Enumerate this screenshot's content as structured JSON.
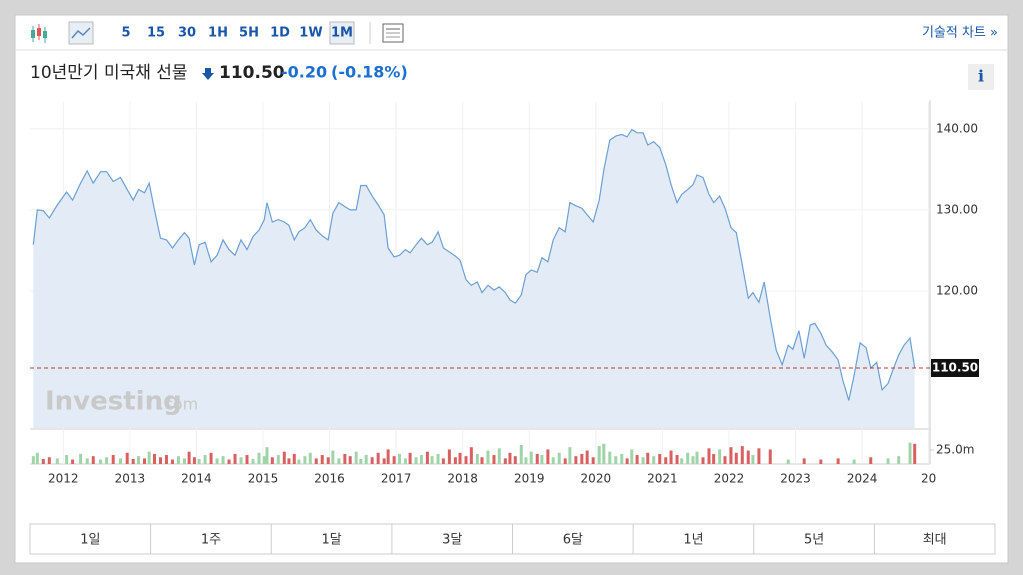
{
  "toolbar": {
    "intervals": [
      "5",
      "15",
      "30",
      "1H",
      "5H",
      "1D",
      "1W",
      "1M"
    ],
    "link": "기술적 차트 »"
  },
  "header": {
    "title": "10년만기 미국채 선물",
    "price": "110.50",
    "change": "-0.20",
    "change_pct": "(-0.18%)",
    "info": "i"
  },
  "watermark": {
    "brand": "Investing",
    "suffix": ".com"
  },
  "ranges": [
    "1일",
    "1주",
    "1달",
    "3달",
    "6달",
    "1년",
    "5년",
    "최대"
  ],
  "chart_data": {
    "type": "area",
    "color": "#6b9fd4",
    "fill": "#e3ecf6",
    "x": [
      2011.55,
      2011.61,
      2011.7,
      2011.79,
      2011.91,
      2012.05,
      2012.14,
      2012.26,
      2012.36,
      2012.45,
      2012.56,
      2012.65,
      2012.75,
      2012.86,
      2012.96,
      2013.05,
      2013.13,
      2013.22,
      2013.29,
      2013.37,
      2013.46,
      2013.55,
      2013.64,
      2013.73,
      2013.82,
      2013.89,
      2013.97,
      2014.04,
      2014.13,
      2014.22,
      2014.31,
      2014.4,
      2014.49,
      2014.58,
      2014.67,
      2014.76,
      2014.85,
      2014.94,
      2015.02,
      2015.06,
      2015.14,
      2015.23,
      2015.32,
      2015.39,
      2015.47,
      2015.54,
      2015.63,
      2015.71,
      2015.8,
      2015.89,
      2015.98,
      2016.05,
      2016.14,
      2016.23,
      2016.31,
      2016.4,
      2016.47,
      2016.55,
      2016.64,
      2016.73,
      2016.82,
      2016.88,
      2016.97,
      2017.05,
      2017.14,
      2017.21,
      2017.3,
      2017.38,
      2017.47,
      2017.54,
      2017.63,
      2017.71,
      2017.8,
      2017.89,
      2017.96,
      2018.05,
      2018.13,
      2018.22,
      2018.29,
      2018.38,
      2018.47,
      2018.55,
      2018.64,
      2018.71,
      2018.79,
      2018.88,
      2018.95,
      2019.03,
      2019.12,
      2019.19,
      2019.28,
      2019.36,
      2019.45,
      2019.54,
      2019.61,
      2019.7,
      2019.79,
      2019.87,
      2019.96,
      2020.05,
      2020.12,
      2020.21,
      2020.3,
      2020.39,
      2020.47,
      2020.54,
      2020.62,
      2020.71,
      2020.78,
      2020.87,
      2020.96,
      2021.05,
      2021.13,
      2021.22,
      2021.29,
      2021.38,
      2021.46,
      2021.52,
      2021.61,
      2021.7,
      2021.77,
      2021.86,
      2021.94,
      2022.03,
      2022.11,
      2022.2,
      2022.29,
      2022.36,
      2022.45,
      2022.53,
      2022.62,
      2022.71,
      2022.8,
      2022.89,
      2022.96,
      2023.05,
      2023.13,
      2023.22,
      2023.29,
      2023.38,
      2023.46,
      2023.55,
      2023.64,
      2023.71,
      2023.8,
      2023.88,
      2023.97,
      2024.06,
      2024.13,
      2024.22,
      2024.3,
      2024.39,
      2024.46,
      2024.55,
      2024.63,
      2024.72,
      2024.79
    ],
    "values": [
      125.7,
      130.0,
      129.9,
      129.0,
      130.6,
      132.2,
      131.2,
      133.3,
      134.8,
      133.3,
      134.7,
      134.7,
      133.5,
      134.0,
      132.5,
      131.2,
      132.5,
      132.1,
      133.3,
      130.0,
      126.5,
      126.3,
      125.3,
      126.3,
      127.2,
      126.5,
      123.2,
      125.7,
      126.0,
      123.6,
      124.4,
      126.3,
      125.1,
      124.4,
      126.3,
      125.1,
      126.7,
      127.5,
      128.8,
      130.9,
      128.5,
      128.8,
      128.5,
      128.1,
      126.3,
      127.3,
      127.8,
      128.8,
      127.5,
      126.8,
      126.3,
      129.6,
      130.9,
      130.4,
      130.0,
      130.0,
      133.0,
      133.0,
      131.7,
      130.6,
      129.4,
      125.3,
      124.2,
      124.4,
      125.1,
      124.7,
      125.7,
      126.5,
      125.7,
      126.0,
      127.3,
      125.3,
      124.8,
      124.3,
      123.8,
      121.4,
      120.7,
      121.1,
      119.8,
      120.7,
      120.1,
      120.5,
      119.8,
      118.9,
      118.5,
      119.5,
      122.0,
      122.6,
      122.3,
      124.1,
      123.6,
      126.3,
      127.8,
      127.3,
      130.9,
      130.5,
      130.2,
      129.4,
      128.5,
      131.2,
      134.9,
      138.6,
      139.1,
      139.3,
      139.0,
      139.9,
      139.5,
      139.5,
      138.0,
      138.4,
      137.7,
      135.6,
      133.1,
      130.9,
      131.9,
      132.5,
      133.1,
      134.3,
      134.0,
      131.9,
      130.9,
      131.7,
      130.2,
      127.8,
      127.2,
      123.2,
      119.1,
      119.8,
      118.6,
      121.1,
      116.7,
      112.7,
      110.9,
      113.3,
      112.8,
      115.1,
      111.7,
      115.8,
      116.0,
      114.8,
      113.3,
      112.5,
      111.5,
      109.0,
      106.5,
      109.6,
      113.6,
      113.0,
      110.5,
      111.2,
      107.8,
      108.6,
      110.2,
      112.1,
      113.3,
      114.2,
      110.5
    ],
    "xlim": [
      2011.5,
      2025.02
    ],
    "xticks": [
      2012,
      2013,
      2014,
      2015,
      2016,
      2017,
      2018,
      2019,
      2020,
      2021,
      2022,
      2023,
      2024,
      {
        "value": 2025,
        "label": "20"
      }
    ],
    "ylim": [
      103.1,
      143.3
    ],
    "yticks": [
      {
        "value": 140,
        "label": "140.00"
      },
      {
        "value": 130,
        "label": "130.00"
      },
      {
        "value": 120,
        "label": "120.00"
      }
    ],
    "grid": true,
    "current_price": {
      "value": 110.5,
      "label": "110.50",
      "color": "#c0392b"
    },
    "volume": {
      "up_color": "#9fd4a8",
      "down_color": "#d9605f",
      "ylim": [
        0,
        60.7
      ],
      "yticks": [
        {
          "value": 25,
          "label": "25.0m"
        }
      ],
      "values": [
        14,
        20,
        9,
        12,
        10,
        16,
        8,
        18,
        10,
        14,
        8,
        12,
        16,
        10,
        20,
        9,
        14,
        10,
        22,
        18,
        12,
        16,
        8,
        14,
        10,
        22,
        12,
        9,
        16,
        20,
        10,
        14,
        8,
        18,
        12,
        16,
        9,
        20,
        14,
        30,
        12,
        16,
        22,
        10,
        18,
        8,
        14,
        20,
        10,
        16,
        12,
        24,
        10,
        18,
        14,
        22,
        9,
        16,
        12,
        20,
        10,
        26,
        14,
        18,
        10,
        20,
        12,
        16,
        22,
        14,
        18,
        10,
        26,
        12,
        20,
        14,
        30,
        18,
        12,
        24,
        16,
        28,
        10,
        20,
        14,
        34,
        12,
        22,
        18,
        16,
        26,
        12,
        20,
        10,
        30,
        14,
        18,
        24,
        12,
        32,
        36,
        22,
        14,
        18,
        10,
        26,
        16,
        12,
        20,
        14,
        18,
        12,
        24,
        16,
        10,
        20,
        14,
        22,
        12,
        28,
        18,
        26,
        14,
        30,
        20,
        32,
        24,
        16,
        28,
        null,
        26,
        null,
        null,
        8,
        null,
        null,
        10,
        null,
        null,
        8,
        null,
        null,
        10,
        null,
        null,
        8,
        null,
        null,
        12,
        null,
        null,
        10,
        null,
        14,
        null,
        38,
        36
      ]
    }
  }
}
